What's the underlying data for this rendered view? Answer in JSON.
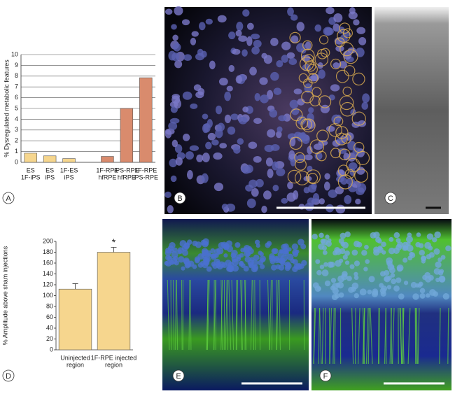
{
  "panel_labels": [
    "A",
    "B",
    "C",
    "D",
    "E",
    "F"
  ],
  "chart_data": [
    {
      "type": "bar",
      "y_label": "% Dysregulated metabolic features",
      "categories": [
        [
          "ES",
          "1F-iPS"
        ],
        [
          "ES",
          "iPS"
        ],
        [
          "1F-ES",
          "iPS"
        ],
        [
          "1F-RPE",
          "hfRPE"
        ],
        [
          "iPS-RPE",
          "hfRPE"
        ],
        [
          "1F-RPE",
          "iPS-RPE"
        ]
      ],
      "values": [
        0.85,
        0.6,
        0.35,
        0.55,
        5.0,
        7.85
      ],
      "colors": [
        "#f6d68e",
        "#f6d68e",
        "#f6d68e",
        "#d98b6d",
        "#d98b6d",
        "#d98b6d"
      ],
      "ylim": [
        0,
        10
      ],
      "yticks": [
        0,
        1,
        2,
        3,
        4,
        5,
        6,
        7,
        8,
        9,
        10
      ],
      "grid": true
    },
    {
      "type": "bar",
      "y_label": "% Amplitude above sham injections",
      "categories": [
        [
          "Uninjected",
          "region"
        ],
        [
          "1F-RPE injected",
          "region"
        ]
      ],
      "values": [
        112,
        180
      ],
      "errors": [
        10,
        9
      ],
      "colors": [
        "#f6d68e",
        "#f6d68e"
      ],
      "annotation": "*",
      "ylim": [
        0,
        200
      ],
      "yticks": [
        0,
        20,
        40,
        60,
        80,
        100,
        120,
        140,
        160,
        180,
        200
      ],
      "grid": false
    }
  ]
}
